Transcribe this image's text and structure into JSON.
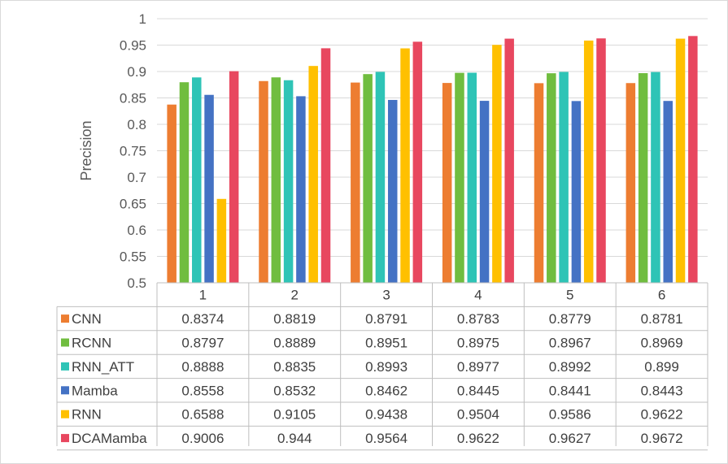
{
  "chart_data": {
    "type": "bar",
    "ylabel": "Precision",
    "ylim": [
      0.5,
      1
    ],
    "yticks": [
      "0.5",
      "0.55",
      "0.6",
      "0.65",
      "0.7",
      "0.75",
      "0.8",
      "0.85",
      "0.9",
      "0.95",
      "1"
    ],
    "categories": [
      "1",
      "2",
      "3",
      "4",
      "5",
      "6"
    ],
    "grid": true,
    "legend": "data-table",
    "series": [
      {
        "name": "CNN",
        "color": "#ED7D31",
        "values": [
          "0.8374",
          "0.8819",
          "0.8791",
          "0.8783",
          "0.8779",
          "0.8781"
        ]
      },
      {
        "name": "RCNN",
        "color": "#70BD3F",
        "values": [
          "0.8797",
          "0.8889",
          "0.8951",
          "0.8975",
          "0.8967",
          "0.8969"
        ]
      },
      {
        "name": "RNN_ATT",
        "color": "#2EC4B6",
        "values": [
          "0.8888",
          "0.8835",
          "0.8993",
          "0.8977",
          "0.8992",
          "0.899"
        ]
      },
      {
        "name": "Mamba",
        "color": "#4472C4",
        "values": [
          "0.8558",
          "0.8532",
          "0.8462",
          "0.8445",
          "0.8441",
          "0.8443"
        ]
      },
      {
        "name": "RNN",
        "color": "#FFC000",
        "values": [
          "0.6588",
          "0.9105",
          "0.9438",
          "0.9504",
          "0.9586",
          "0.9622"
        ]
      },
      {
        "name": "DCAMamba",
        "color": "#E8475F",
        "values": [
          "0.9006",
          "0.944",
          "0.9564",
          "0.9622",
          "0.9627",
          "0.9672"
        ]
      }
    ]
  }
}
